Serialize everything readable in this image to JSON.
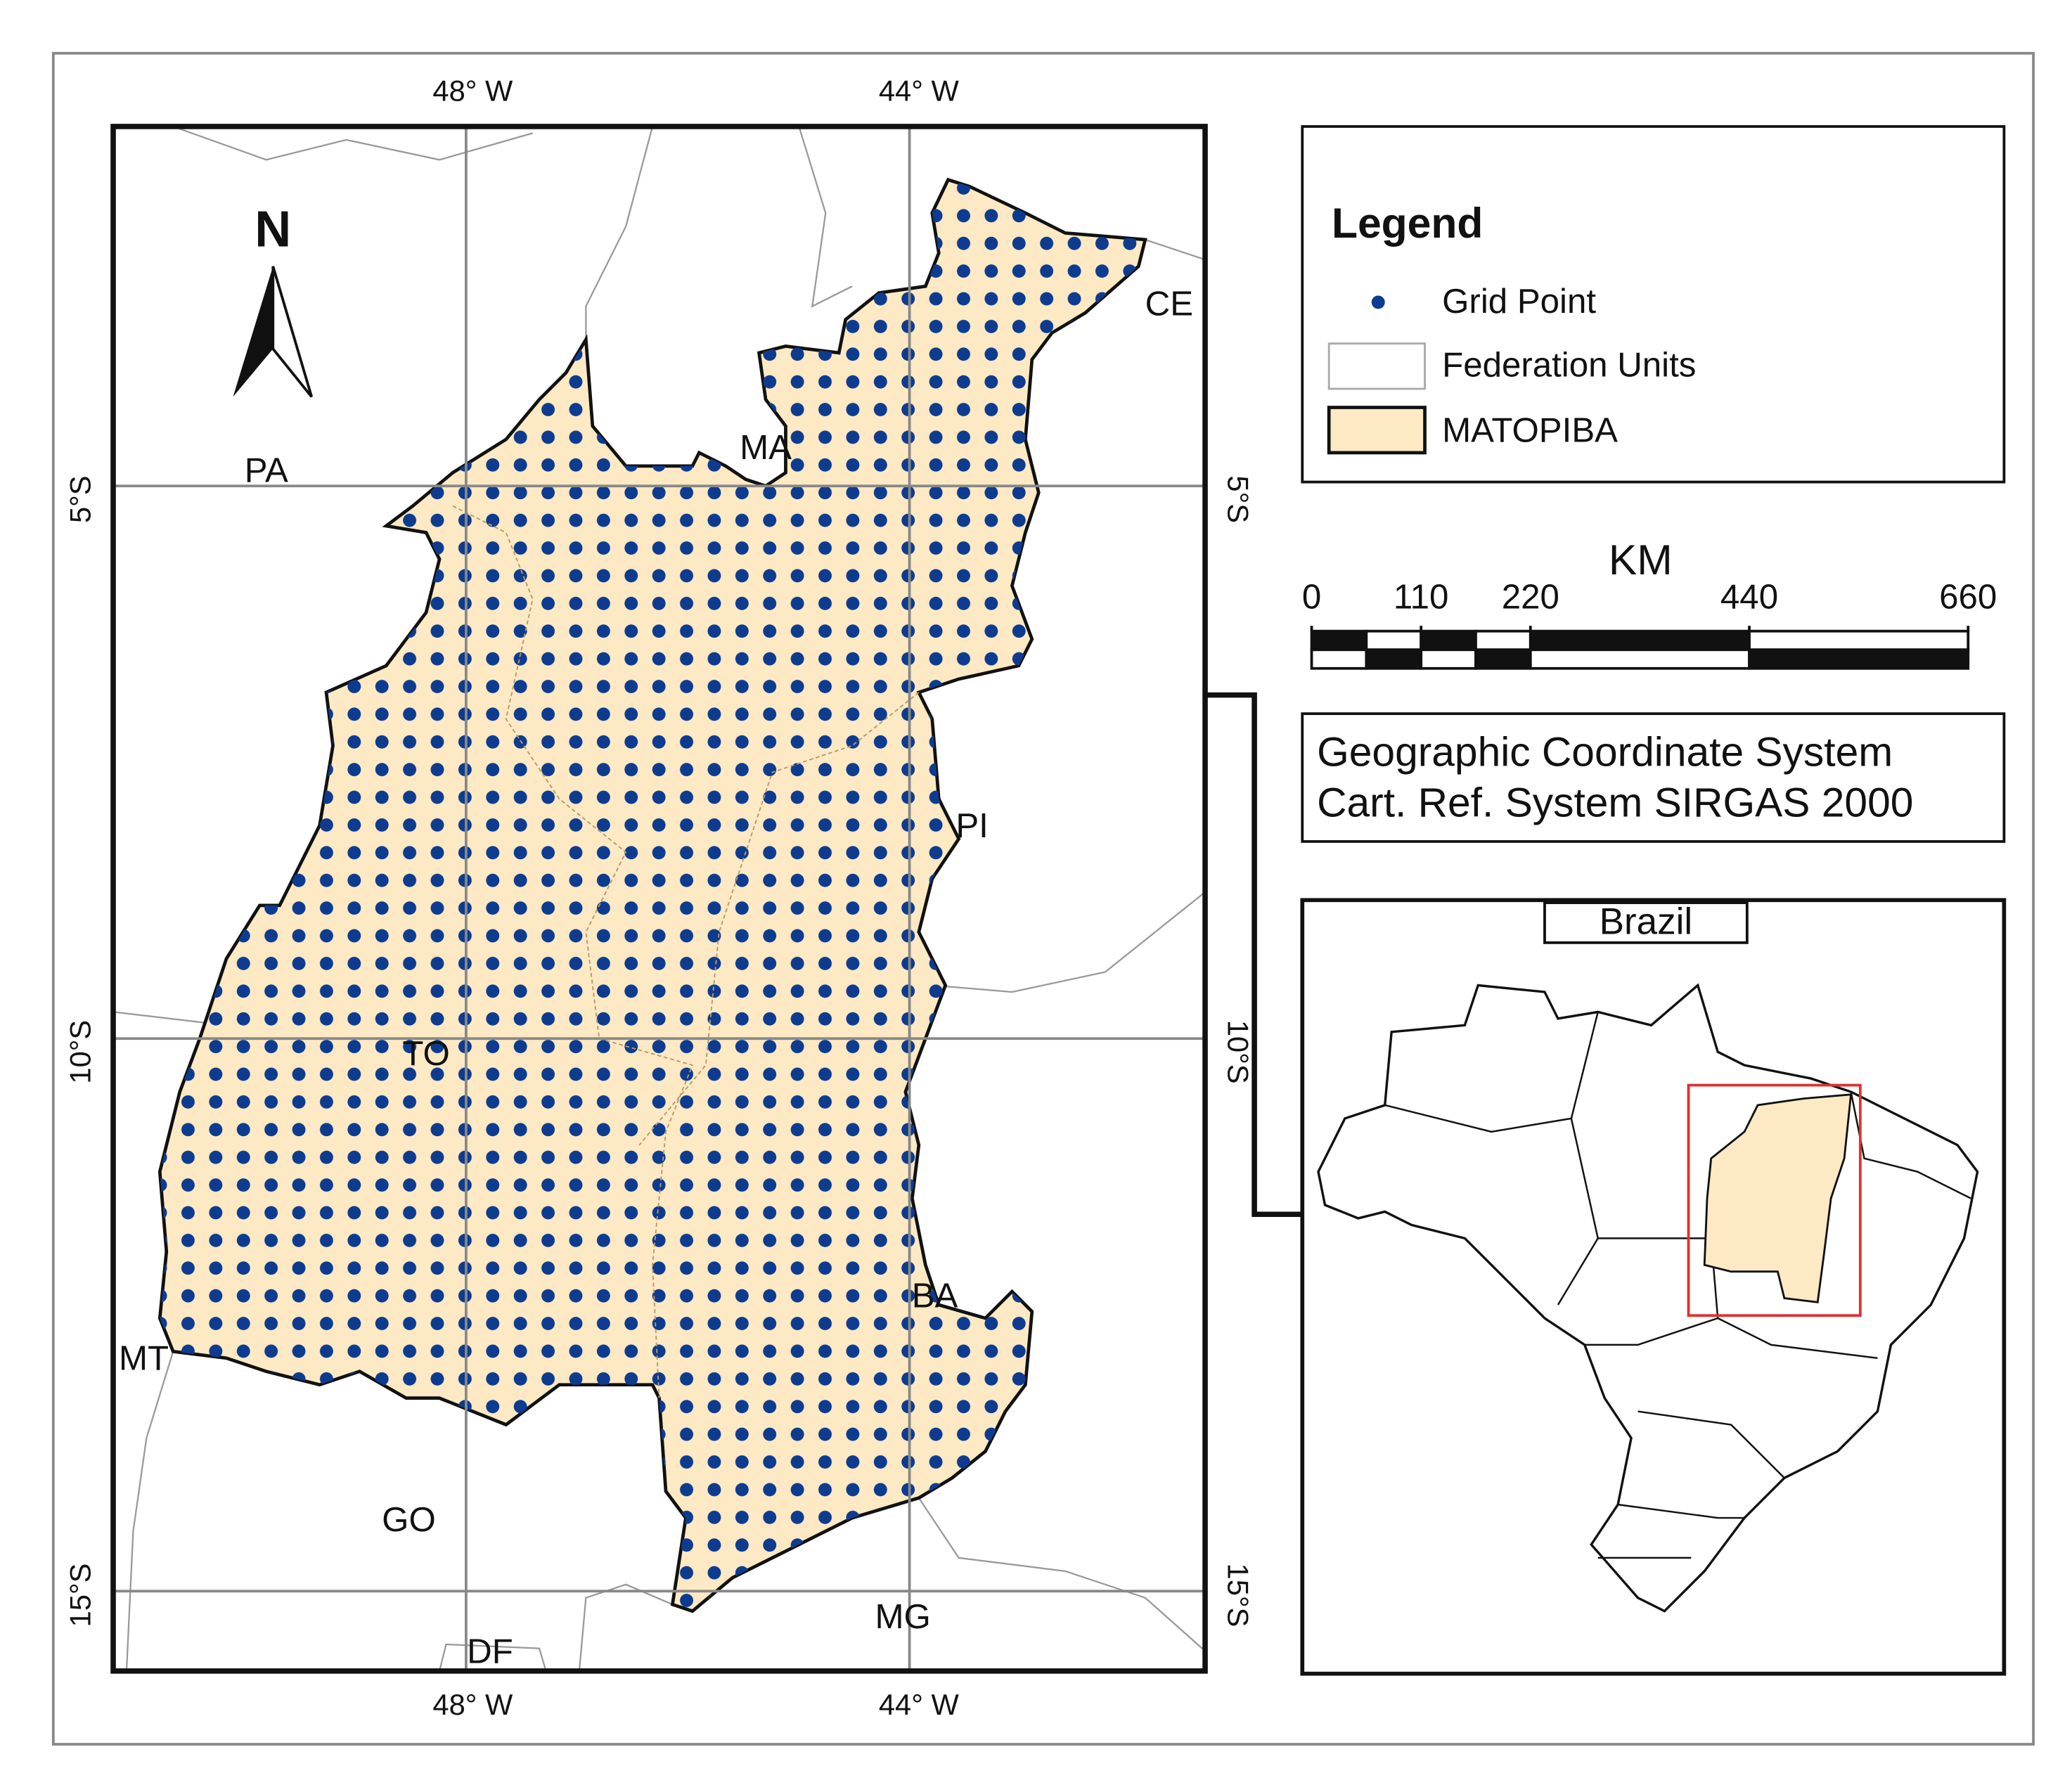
{
  "north_arrow": "N",
  "graticule": {
    "top": [
      "48° W",
      "44° W"
    ],
    "bottom": [
      "48° W",
      "44° W"
    ],
    "left": [
      "5°S",
      "10°S",
      "15°S"
    ],
    "right": [
      "5°S",
      "10°S",
      "15°S"
    ]
  },
  "states": [
    "PA",
    "MA",
    "CE",
    "PI",
    "TO",
    "BA",
    "MT",
    "GO",
    "DF",
    "MG"
  ],
  "legend": {
    "title": "Legend",
    "items": [
      "Grid Point",
      "Federation Units",
      "MATOPIBA"
    ]
  },
  "scale_bar": {
    "unit": "KM",
    "ticks": [
      0,
      110,
      220,
      440,
      660
    ]
  },
  "coordinate_system": [
    "Geographic Coordinate System",
    "Cart. Ref. System SIRGAS 2000"
  ],
  "inset": {
    "title": "Brazil"
  }
}
